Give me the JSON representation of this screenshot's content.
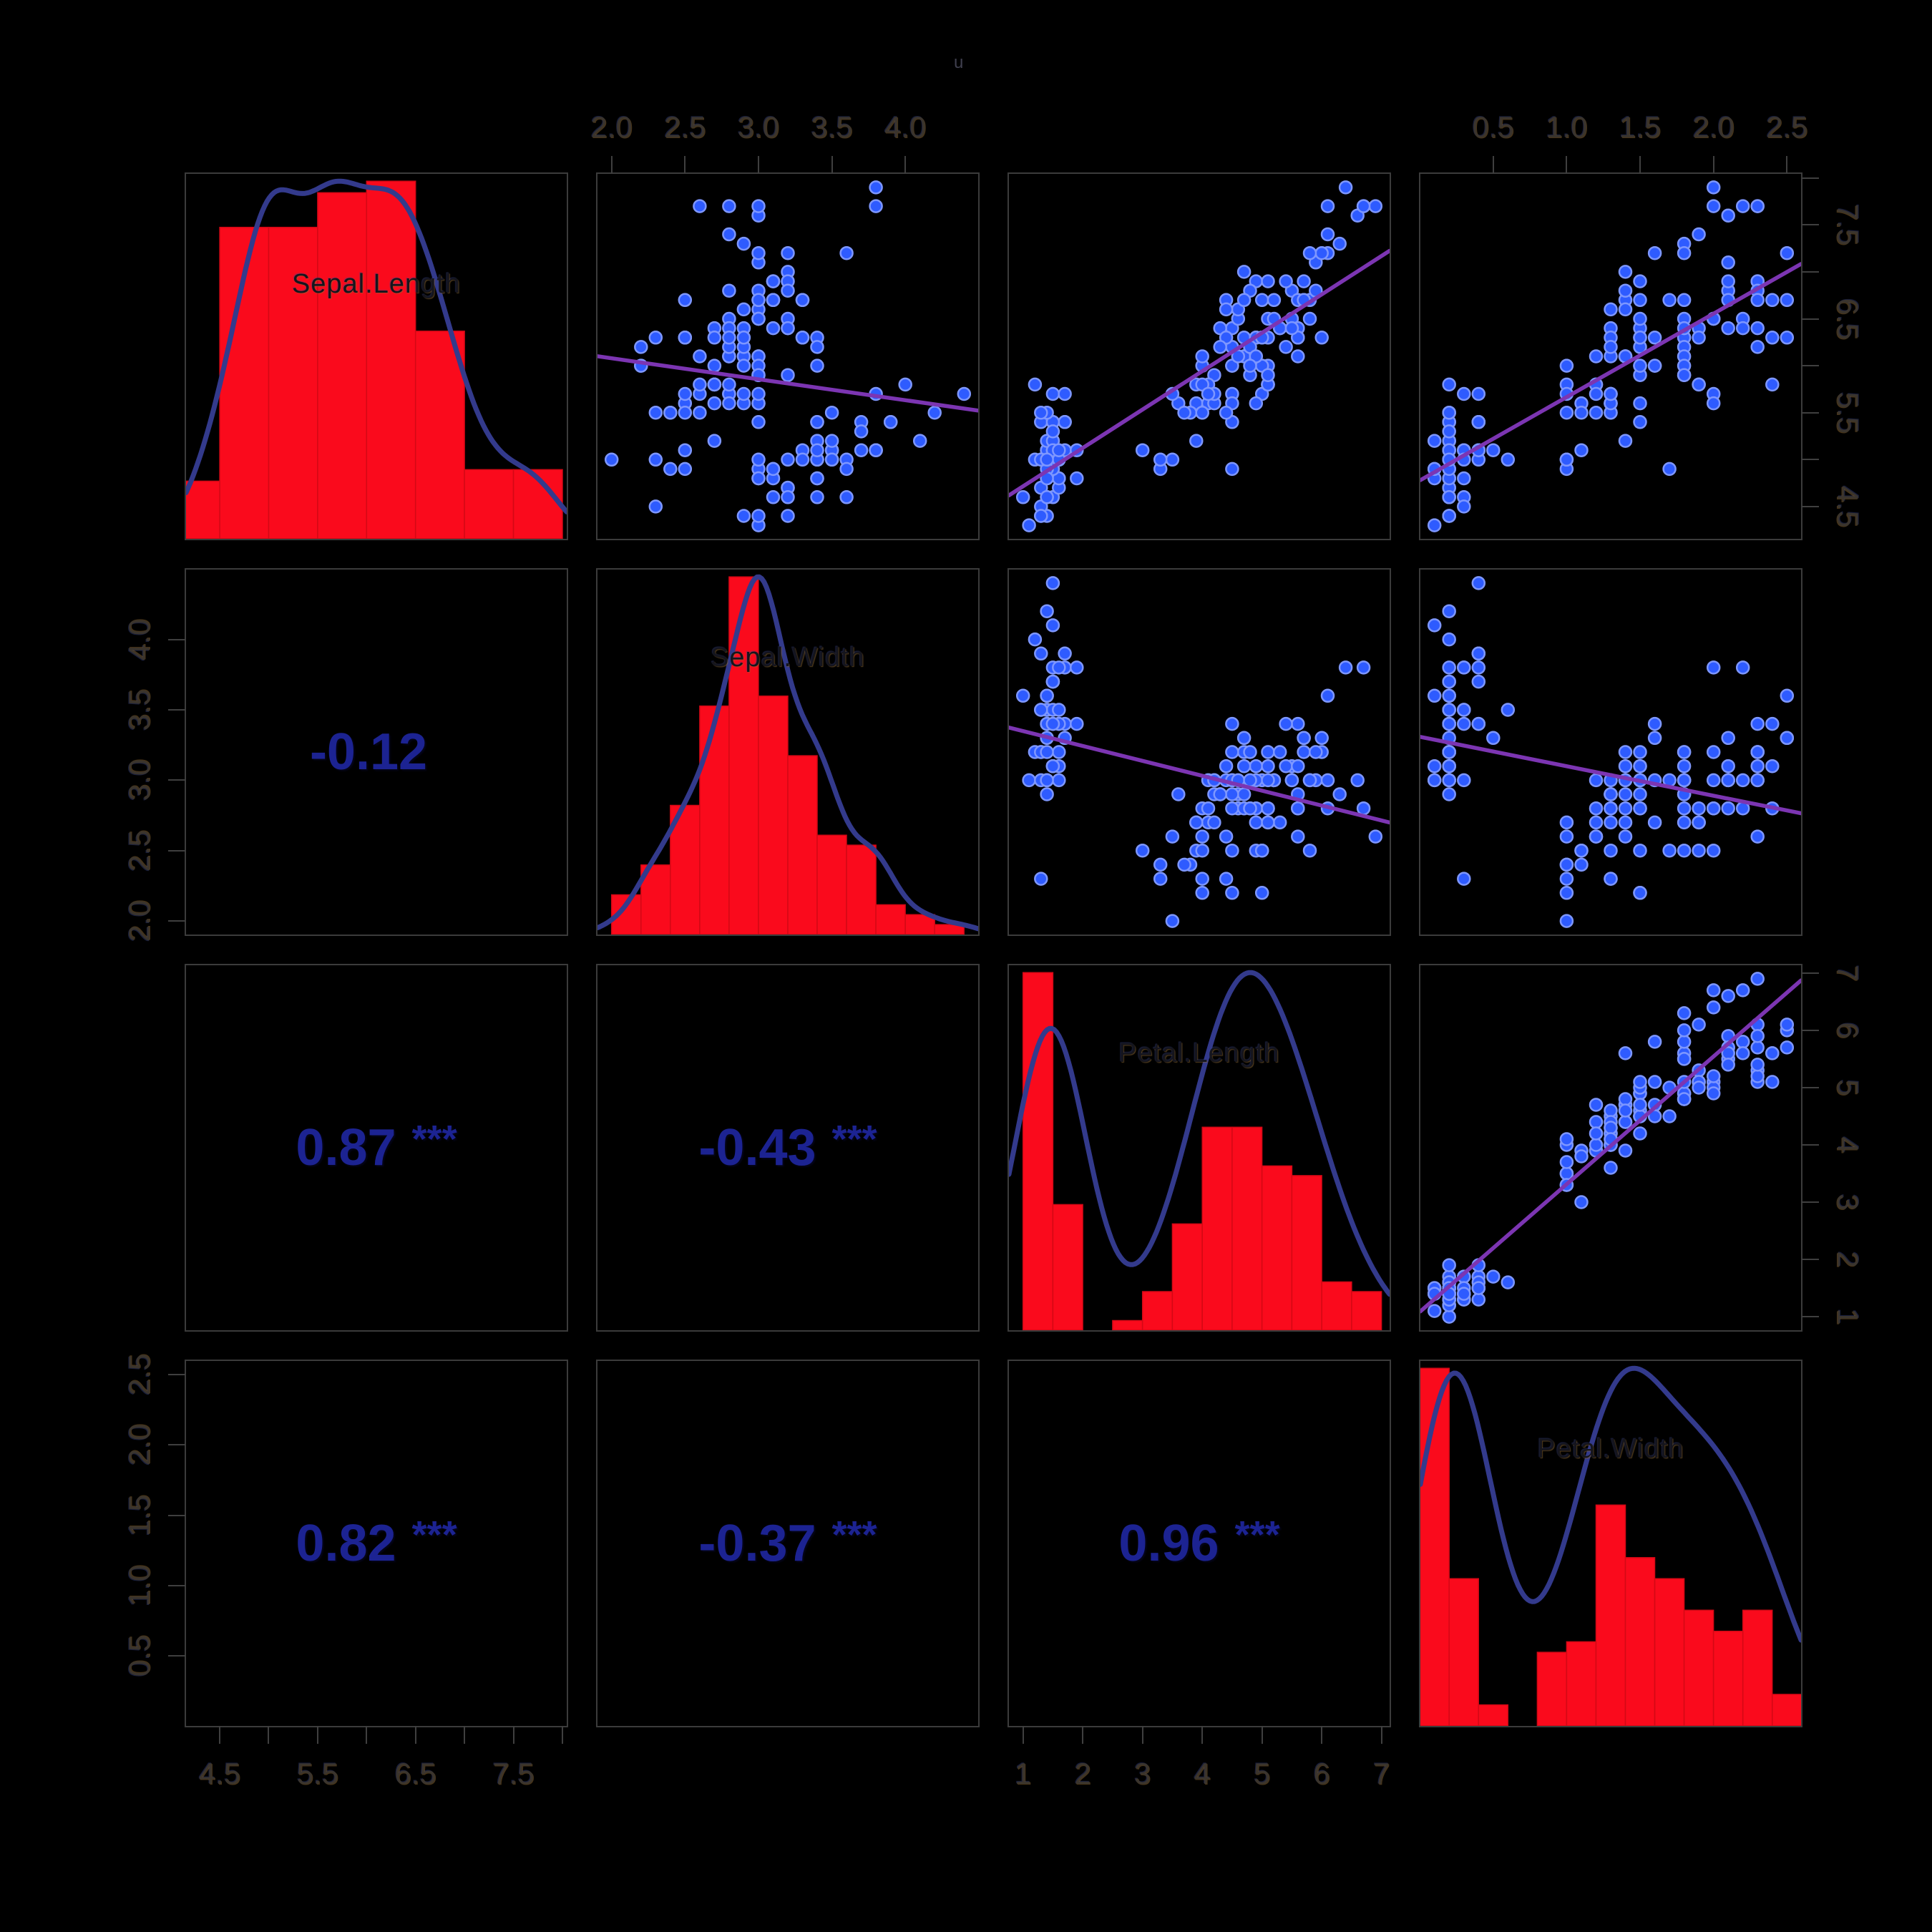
{
  "title_fragment": "u",
  "colors": {
    "background": "#000000",
    "panel_border": "#3b3b3b",
    "histogram_fill": "#fa0a1c",
    "histogram_border": "#d8огу0813",
    "density_line": "#333a8c",
    "point_fill": "#2e5bff",
    "point_stroke": "#7e97ff",
    "regression_line": "#7c35b2",
    "correlation_text": "#1c2392",
    "axis_text": "#3a342d",
    "variable_label": "#15151d"
  },
  "chart_data": {
    "type": "scatter",
    "subtype": "pairs-scatterplot-matrix",
    "title": "",
    "grid": "off",
    "legend": "none",
    "variables": [
      {
        "name": "Sepal.Length",
        "lim": [
          4.156,
          8.044
        ],
        "ticks": [
          4.5,
          5.0,
          5.5,
          6.0,
          6.5,
          7.0,
          7.5,
          8.0
        ],
        "tick_labels": [
          "4.5",
          "",
          "5.5",
          "",
          "6.5",
          "",
          "7.5",
          ""
        ],
        "hist_breaks": {
          "start": 4.0,
          "step": 0.5,
          "n": 8
        }
      },
      {
        "name": "Sepal.Width",
        "lim": [
          1.904,
          4.496
        ],
        "ticks": [
          2.0,
          2.5,
          3.0,
          3.5,
          4.0
        ],
        "tick_labels": [
          "2.0",
          "2.5",
          "3.0",
          "3.5",
          "4.0"
        ],
        "hist_breaks": {
          "start": 2.0,
          "step": 0.2,
          "n": 12
        }
      },
      {
        "name": "Petal.Length",
        "lim": [
          0.764,
          7.136
        ],
        "ticks": [
          1,
          2,
          3,
          4,
          5,
          6,
          7
        ],
        "tick_labels": [
          "1",
          "2",
          "3",
          "4",
          "5",
          "6",
          "7"
        ],
        "hist_breaks": {
          "start": 1.0,
          "step": 0.5,
          "n": 12
        }
      },
      {
        "name": "Petal.Width",
        "lim": [
          0.004,
          2.596
        ],
        "ticks": [
          0.5,
          1.0,
          1.5,
          2.0,
          2.5
        ],
        "tick_labels": [
          "0.5",
          "1.0",
          "1.5",
          "2.0",
          "2.5"
        ],
        "hist_breaks": {
          "start": 0.0,
          "step": 0.2,
          "n": 13
        }
      }
    ],
    "correlations": [
      {
        "pair": "Sepal.Width~Sepal.Length",
        "value": "-0.12",
        "stars": ""
      },
      {
        "pair": "Petal.Length~Sepal.Length",
        "value": "0.87",
        "stars": "***"
      },
      {
        "pair": "Petal.Length~Sepal.Width",
        "value": "-0.43",
        "stars": "***"
      },
      {
        "pair": "Petal.Width~Sepal.Length",
        "value": "0.82",
        "stars": "***"
      },
      {
        "pair": "Petal.Width~Sepal.Width",
        "value": "-0.37",
        "stars": "***"
      },
      {
        "pair": "Petal.Width~Petal.Length",
        "value": "0.96",
        "stars": "***"
      }
    ],
    "points": {
      "Sepal.Length": [
        5.1,
        4.9,
        4.7,
        4.6,
        5.0,
        5.4,
        4.6,
        5.0,
        4.4,
        4.9,
        5.4,
        4.8,
        4.8,
        4.3,
        5.8,
        5.7,
        5.4,
        5.1,
        5.7,
        5.1,
        5.4,
        5.1,
        4.6,
        5.1,
        4.8,
        5.0,
        5.0,
        5.2,
        5.2,
        4.7,
        4.8,
        5.4,
        5.2,
        5.5,
        4.9,
        5.0,
        5.5,
        4.9,
        4.4,
        5.1,
        5.0,
        4.5,
        4.4,
        5.0,
        5.1,
        4.8,
        5.1,
        4.6,
        5.3,
        5.0,
        7.0,
        6.4,
        6.9,
        5.5,
        6.5,
        5.7,
        6.3,
        4.9,
        6.6,
        5.2,
        5.0,
        5.9,
        6.0,
        6.1,
        5.6,
        6.7,
        5.6,
        5.8,
        6.2,
        5.6,
        5.9,
        6.1,
        6.3,
        6.1,
        6.4,
        6.6,
        6.8,
        6.7,
        6.0,
        5.7,
        5.5,
        5.5,
        5.8,
        6.0,
        5.4,
        6.0,
        6.7,
        6.3,
        5.6,
        5.5,
        5.5,
        6.1,
        5.8,
        5.0,
        5.6,
        5.7,
        5.7,
        6.2,
        5.1,
        5.7,
        6.3,
        5.8,
        7.1,
        6.3,
        6.5,
        7.6,
        4.9,
        7.3,
        6.7,
        7.2,
        6.5,
        6.4,
        6.8,
        5.7,
        5.8,
        6.4,
        6.5,
        7.7,
        7.7,
        6.0,
        6.9,
        5.6,
        7.7,
        6.3,
        6.7,
        7.2,
        6.2,
        6.1,
        6.4,
        7.2,
        7.4,
        7.9,
        6.4,
        6.3,
        6.1,
        7.7,
        6.3,
        6.4,
        6.0,
        6.9,
        6.7,
        6.9,
        5.8,
        6.8,
        6.7,
        6.7,
        6.3,
        6.5,
        6.2,
        5.9
      ],
      "Sepal.Width": [
        3.5,
        3.0,
        3.2,
        3.1,
        3.6,
        3.9,
        3.4,
        3.4,
        2.9,
        3.1,
        3.7,
        3.4,
        3.0,
        3.0,
        4.0,
        4.4,
        3.9,
        3.5,
        3.8,
        3.8,
        3.4,
        3.7,
        3.6,
        3.3,
        3.4,
        3.0,
        3.4,
        3.5,
        3.4,
        3.2,
        3.1,
        3.4,
        4.1,
        4.2,
        3.1,
        3.2,
        3.5,
        3.6,
        3.0,
        3.4,
        3.5,
        2.3,
        3.2,
        3.5,
        3.8,
        3.0,
        3.8,
        3.2,
        3.7,
        3.3,
        3.2,
        3.2,
        3.1,
        2.3,
        2.8,
        2.8,
        3.3,
        2.4,
        2.9,
        2.7,
        2.0,
        3.0,
        2.2,
        2.9,
        2.9,
        3.1,
        3.0,
        2.7,
        2.2,
        2.5,
        3.2,
        2.8,
        2.5,
        2.8,
        2.9,
        3.0,
        2.8,
        3.0,
        2.9,
        2.6,
        2.4,
        2.4,
        2.7,
        2.7,
        3.0,
        3.4,
        3.1,
        2.3,
        3.0,
        2.5,
        2.6,
        3.0,
        2.6,
        2.3,
        2.7,
        3.0,
        2.9,
        2.9,
        2.5,
        2.8,
        3.3,
        2.7,
        3.0,
        2.9,
        3.0,
        3.0,
        2.5,
        2.9,
        2.5,
        3.6,
        3.2,
        2.7,
        3.0,
        2.5,
        2.8,
        3.2,
        3.0,
        3.8,
        2.6,
        2.2,
        3.2,
        2.8,
        2.8,
        2.7,
        3.3,
        3.2,
        2.8,
        3.0,
        2.8,
        3.0,
        2.8,
        3.8,
        2.8,
        2.8,
        2.6,
        3.0,
        3.4,
        3.1,
        3.0,
        3.1,
        3.1,
        3.1,
        2.7,
        3.2,
        3.3,
        3.0,
        2.5,
        3.0,
        3.4,
        3.0
      ],
      "Petal.Length": [
        1.4,
        1.4,
        1.3,
        1.5,
        1.4,
        1.7,
        1.4,
        1.5,
        1.4,
        1.5,
        1.5,
        1.6,
        1.4,
        1.1,
        1.2,
        1.5,
        1.3,
        1.4,
        1.7,
        1.5,
        1.7,
        1.5,
        1.0,
        1.7,
        1.9,
        1.6,
        1.6,
        1.5,
        1.4,
        1.6,
        1.6,
        1.5,
        1.5,
        1.4,
        1.5,
        1.2,
        1.3,
        1.4,
        1.3,
        1.5,
        1.3,
        1.3,
        1.3,
        1.6,
        1.9,
        1.4,
        1.6,
        1.4,
        1.5,
        1.4,
        4.7,
        4.5,
        4.9,
        4.0,
        4.6,
        4.5,
        4.7,
        3.3,
        4.6,
        3.9,
        3.5,
        4.2,
        4.0,
        4.7,
        3.6,
        4.4,
        4.5,
        4.1,
        4.5,
        3.9,
        4.8,
        4.0,
        4.9,
        4.7,
        4.3,
        4.4,
        4.8,
        5.0,
        4.5,
        3.5,
        3.8,
        3.7,
        3.9,
        5.1,
        4.5,
        4.5,
        4.7,
        4.4,
        4.1,
        4.0,
        4.4,
        4.6,
        4.0,
        3.3,
        4.2,
        4.2,
        4.2,
        4.3,
        3.0,
        4.1,
        6.0,
        5.1,
        5.9,
        5.6,
        5.8,
        6.6,
        4.5,
        6.3,
        5.8,
        6.1,
        5.1,
        5.3,
        5.5,
        5.0,
        5.1,
        5.3,
        5.5,
        6.7,
        6.9,
        5.0,
        5.7,
        4.9,
        6.7,
        4.9,
        5.7,
        6.0,
        4.8,
        4.9,
        5.6,
        5.8,
        6.1,
        6.4,
        5.6,
        5.1,
        5.6,
        6.1,
        5.6,
        5.5,
        4.8,
        5.4,
        5.6,
        5.1,
        5.1,
        5.9,
        5.7,
        5.2,
        5.0,
        5.2,
        5.4,
        5.1
      ],
      "Petal.Width": [
        0.2,
        0.2,
        0.2,
        0.2,
        0.2,
        0.4,
        0.3,
        0.2,
        0.2,
        0.1,
        0.2,
        0.2,
        0.1,
        0.1,
        0.2,
        0.4,
        0.4,
        0.3,
        0.3,
        0.3,
        0.2,
        0.4,
        0.2,
        0.5,
        0.2,
        0.2,
        0.4,
        0.2,
        0.2,
        0.2,
        0.2,
        0.4,
        0.1,
        0.2,
        0.2,
        0.2,
        0.2,
        0.1,
        0.2,
        0.2,
        0.3,
        0.3,
        0.2,
        0.6,
        0.4,
        0.3,
        0.2,
        0.2,
        0.2,
        0.2,
        1.4,
        1.5,
        1.5,
        1.3,
        1.5,
        1.3,
        1.6,
        1.0,
        1.3,
        1.4,
        1.0,
        1.5,
        1.0,
        1.4,
        1.3,
        1.4,
        1.5,
        1.0,
        1.5,
        1.1,
        1.8,
        1.3,
        1.5,
        1.2,
        1.3,
        1.4,
        1.4,
        1.7,
        1.5,
        1.0,
        1.1,
        1.0,
        1.2,
        1.6,
        1.5,
        1.6,
        1.5,
        1.3,
        1.3,
        1.3,
        1.2,
        1.4,
        1.2,
        1.0,
        1.3,
        1.2,
        1.3,
        1.3,
        1.1,
        1.3,
        2.5,
        1.9,
        2.1,
        1.8,
        2.2,
        2.1,
        1.7,
        1.8,
        1.8,
        2.5,
        2.0,
        1.9,
        2.1,
        2.0,
        2.4,
        2.3,
        1.8,
        2.2,
        2.3,
        1.5,
        2.3,
        2.0,
        2.0,
        1.8,
        2.1,
        1.8,
        1.8,
        1.8,
        2.1,
        1.6,
        1.9,
        2.0,
        2.2,
        1.5,
        1.4,
        2.3,
        2.4,
        1.8,
        1.8,
        2.1,
        2.4,
        2.3,
        1.9,
        2.3,
        2.5,
        2.3,
        1.9,
        2.0,
        2.3,
        1.8
      ]
    }
  }
}
